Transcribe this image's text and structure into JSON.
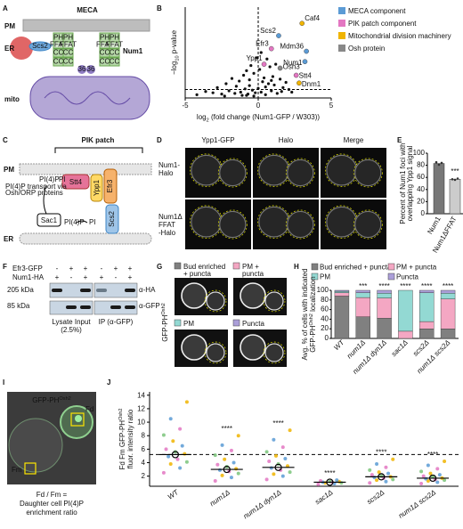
{
  "figure": {
    "panel_labels": [
      "A",
      "B",
      "C",
      "D",
      "E",
      "F",
      "G",
      "H",
      "I",
      "J"
    ]
  },
  "a": {
    "title": "MECA",
    "pm": "PM",
    "er": "ER",
    "mito": "mito",
    "num1": "Num1",
    "scs2": "Scs2",
    "ph": "PH",
    "ffat": "FFAT",
    "cc": "CC",
    "mdm36": "36"
  },
  "c": {
    "title": "PIK patch",
    "pm": "PM",
    "er": "ER",
    "transport": [
      "PI(4)P transport via",
      "Osh/ORP proteins"
    ],
    "pi4p": "PI(4)P",
    "pi": "PI",
    "stt4": "Stt4",
    "ypp1": "Ypp1",
    "efr3": "Efr3",
    "scs2": "Scs2",
    "sac1": "Sac1"
  },
  "d": {
    "columns": [
      "Ypp1-GFP",
      "Halo",
      "Merge"
    ],
    "rows": [
      [
        "Num1-",
        "Halo"
      ],
      [
        "Num1Δ",
        "FFAT",
        "-Halo"
      ]
    ]
  },
  "f": {
    "rows": [
      {
        "label": "Efr3-GFP",
        "signs": [
          "-",
          "+",
          "+",
          "-",
          "+",
          "+"
        ]
      },
      {
        "label": "Num1-HA",
        "signs": [
          "+",
          "-",
          "+",
          "+",
          "-",
          "+"
        ]
      }
    ],
    "markers": [
      "205 kDa",
      "85 kDa"
    ],
    "antibodies": [
      "α-HA",
      "α-GFP"
    ],
    "lysate": [
      "Lysate Input",
      "(2.5%)"
    ],
    "ip": "IP (α-GFP)"
  },
  "g": {
    "legend": [
      [
        "Bud enriched",
        "+ puncta"
      ],
      [
        "PM +",
        "puncta"
      ],
      [
        "PM"
      ],
      [
        "Puncta"
      ]
    ],
    "colors": [
      "#808080",
      "#f4a7c3",
      "#93d9d3",
      "#ab9fd9"
    ],
    "marker": {
      "base": "GFP-PH",
      "sup": "Osh2"
    }
  },
  "i": {
    "marker": {
      "base": "GFP-PH",
      "sup": "Osh2"
    },
    "fd": "Fd",
    "fm": "Fm",
    "formula": [
      "Fd / Fm =",
      "Daughter cell PI(4)P",
      "enrichment ratio"
    ]
  },
  "chart_data": [
    {
      "type": "scatter",
      "xlabel": {
        "pre": "log",
        "sub": "2",
        "post": " (fold change (Num1-GFP / W303))"
      },
      "ylabel": {
        "pre": "−log",
        "sub": "10",
        "post": " p-value"
      },
      "xlim": [
        -5,
        5
      ],
      "xticks": [
        -5,
        0,
        5
      ],
      "ylim": [
        0,
        14
      ],
      "threshold": 1.3,
      "series": [
        {
          "name": "MECA component",
          "color": "#5b9bd5",
          "x": [
            1.4,
            3.2,
            3.3
          ],
          "values": [
            9.6,
            5.6,
            7.2
          ],
          "labels": [
            "Scs2",
            "Num1",
            "Mdm36"
          ]
        },
        {
          "name": "PIK patch component",
          "color": "#e377c2",
          "x": [
            0.9,
            0.4,
            2.6
          ],
          "values": [
            7.6,
            5.2,
            3.5
          ],
          "labels": [
            "Efr3",
            "Ypp1",
            "Stt4"
          ]
        },
        {
          "name": "Mitochondrial division machinery",
          "color": "#f0b400",
          "x": [
            3.0,
            2.8
          ],
          "values": [
            11.5,
            2.3
          ],
          "labels": [
            "Caf4",
            "Dnm1"
          ]
        },
        {
          "name": "Osh protein",
          "color": "#888888",
          "x": [
            1.5
          ],
          "values": [
            4.6
          ],
          "labels": [
            "Osh3"
          ]
        }
      ],
      "background": {
        "color": "#111111",
        "x": [
          -4.2,
          -3.6,
          -3.1,
          -2.8,
          -2.5,
          -2.2,
          -2.0,
          -1.8,
          -1.6,
          -1.5,
          -1.3,
          -1.2,
          -1.0,
          -0.9,
          -0.8,
          -0.7,
          -0.6,
          -0.5,
          -0.4,
          -0.3,
          -0.2,
          -0.1,
          0.0,
          0.1,
          0.2,
          0.3,
          0.4,
          0.5,
          0.6,
          0.7,
          0.8,
          0.9,
          1.0,
          1.1,
          1.2,
          1.3,
          1.5,
          1.7,
          1.9,
          2.1,
          2.3,
          -1.1,
          -0.6,
          -0.3,
          0.2,
          0.5,
          0.9,
          -2.3,
          -0.8,
          1.6
        ],
        "values": [
          0.5,
          1.0,
          0.8,
          1.6,
          0.6,
          2.2,
          1.1,
          3.0,
          0.7,
          1.8,
          2.6,
          0.9,
          3.5,
          1.4,
          4.2,
          0.6,
          2.8,
          5.0,
          1.2,
          3.8,
          0.8,
          6.2,
          1.5,
          4.4,
          0.9,
          2.5,
          3.1,
          1.7,
          6.0,
          2.2,
          4.8,
          1.1,
          3.3,
          2.0,
          5.2,
          0.7,
          2.9,
          1.6,
          2.4,
          1.3,
          0.9,
          0.4,
          1.9,
          0.3,
          7.0,
          0.5,
          2.7,
          0.3,
          0.4,
          1.0
        ]
      }
    },
    {
      "type": "bar",
      "ylabel": [
        "Percent of Num1 foci with",
        "overlapping Ypp1 signal"
      ],
      "categories": [
        "Num1",
        "Num1ΔFFAT"
      ],
      "values": [
        83,
        57
      ],
      "points": [
        [
          85,
          81,
          84
        ],
        [
          57,
          56,
          58
        ]
      ],
      "colors": [
        "#777777",
        "#cccccc"
      ],
      "ylim": [
        0,
        100
      ],
      "yticks": [
        0,
        20,
        40,
        60,
        80,
        100
      ],
      "significance": [
        null,
        "***"
      ]
    },
    {
      "type": "stacked_bar",
      "ylabel": {
        "line1": "Avg. % of cells with indicated",
        "base": "GFP-PH",
        "sup": "Osh2",
        "post": " localization"
      },
      "categories": [
        "WT",
        "num1Δ",
        "num1Δ dyn1Δ",
        "sac1Δ",
        "scs2Δ",
        "num1Δ scs2Δ"
      ],
      "series": [
        {
          "name": "Bud enriched + puncta",
          "color": "#808080",
          "values": [
            88,
            45,
            42,
            0,
            20,
            20
          ]
        },
        {
          "name": "PM + puncta",
          "color": "#f4a7c3",
          "values": [
            7,
            40,
            42,
            15,
            15,
            62
          ]
        },
        {
          "name": "PM",
          "color": "#93d9d3",
          "values": [
            3,
            10,
            10,
            85,
            60,
            12
          ]
        },
        {
          "name": "Puncta",
          "color": "#ab9fd9",
          "values": [
            2,
            5,
            6,
            0,
            5,
            6
          ]
        }
      ],
      "ylim": [
        0,
        100
      ],
      "yticks": [
        0,
        20,
        40,
        60,
        80,
        100
      ],
      "significance": [
        null,
        "***",
        "****",
        "****",
        "****",
        "****"
      ]
    },
    {
      "type": "dot",
      "ylabel": {
        "base": "Fd Fm GFP-PH",
        "sup": "Osh2",
        "line2": "fluor. intensity ratio"
      },
      "categories": [
        "WT",
        "num1Δ",
        "num1Δ dyn1Δ",
        "sac1Δ",
        "scs2Δ",
        "num1Δ scs2Δ"
      ],
      "means": [
        5.2,
        3.0,
        3.3,
        1.1,
        1.9,
        1.7
      ],
      "points": [
        [
          2.5,
          3.2,
          3.8,
          4.1,
          4.5,
          4.9,
          5.3,
          5.6,
          6.0,
          6.5,
          7.2,
          8.1,
          9.0,
          10.5,
          13.0
        ],
        [
          1.3,
          1.8,
          2.1,
          2.4,
          2.7,
          2.9,
          3.1,
          3.4,
          3.7,
          4.0,
          4.5,
          5.1,
          5.8,
          6.6,
          8.0
        ],
        [
          1.5,
          2.0,
          2.3,
          2.6,
          2.9,
          3.2,
          3.5,
          3.8,
          4.2,
          4.6,
          5.0,
          5.6,
          6.3,
          7.4,
          8.8
        ],
        [
          0.8,
          0.9,
          1.0,
          1.0,
          1.1,
          1.1,
          1.2,
          1.2,
          1.3,
          1.4
        ],
        [
          1.0,
          1.2,
          1.4,
          1.5,
          1.7,
          1.8,
          1.9,
          2.0,
          2.2,
          2.4,
          2.6,
          2.9,
          3.3,
          3.8,
          4.5
        ],
        [
          0.9,
          1.1,
          1.3,
          1.4,
          1.5,
          1.6,
          1.7,
          1.9,
          2.0,
          2.2,
          2.4,
          2.7,
          3.1,
          3.6,
          4.2
        ]
      ],
      "point_colors": [
        "#e377c2",
        "#5b9bd5",
        "#f0b400",
        "#7ac47a"
      ],
      "ylim": [
        0.5,
        14.5
      ],
      "yticks": [
        2,
        4,
        6,
        8,
        10,
        12,
        14
      ],
      "significance": [
        null,
        "****",
        "****",
        "****",
        "****",
        "****"
      ]
    }
  ]
}
